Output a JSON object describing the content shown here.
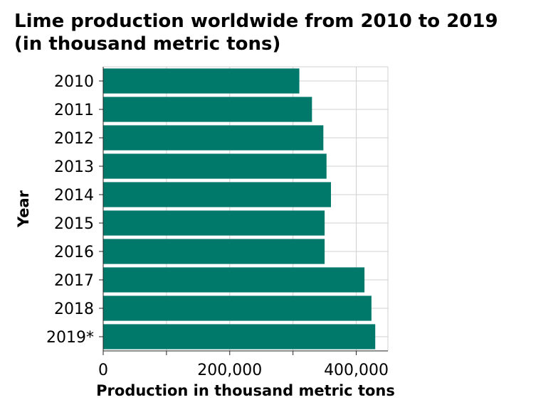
{
  "chart_data": {
    "type": "bar",
    "orientation": "horizontal",
    "title_lines": [
      "Lime production worldwide from 2010 to 2019",
      "(in thousand metric tons)"
    ],
    "xlabel": "Production in thousand metric tons",
    "ylabel": "Year",
    "categories": [
      "2010",
      "2011",
      "2012",
      "2013",
      "2014",
      "2015",
      "2016",
      "2017",
      "2018",
      "2019*"
    ],
    "values": [
      310000,
      330000,
      348000,
      353000,
      360000,
      350000,
      350000,
      413000,
      424000,
      430000
    ],
    "xlim": [
      0,
      450000
    ],
    "x_ticks": [
      0,
      100000,
      200000,
      300000,
      400000
    ],
    "x_tick_labels": [
      "0",
      "",
      "200,000",
      "",
      "400,000"
    ],
    "grid": true,
    "bar_color": "#00796b",
    "grid_color": "#d0d0d0"
  }
}
